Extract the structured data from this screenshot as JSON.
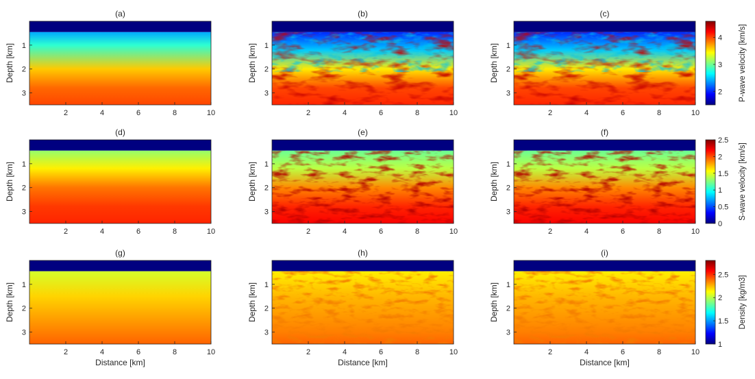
{
  "figure": {
    "xlabel": "Distance [km]",
    "ylabel": "Depth [km]"
  },
  "chart_data": {
    "type": "heatmap",
    "colormap": "jet",
    "x_range": [
      0,
      10
    ],
    "y_range": [
      0,
      3.5
    ],
    "x_ticks": [
      "2",
      "4",
      "6",
      "8",
      "10"
    ],
    "y_ticks": [
      "1",
      "2",
      "3"
    ],
    "x_tick_values": [
      2,
      4,
      6,
      8,
      10
    ],
    "y_tick_values": [
      1,
      2,
      3
    ],
    "water_layer_bottom_km": 0.45,
    "rows": [
      {
        "property": "P-wave velocity",
        "colorbar": {
          "label": "P-wave velocity [km/s]",
          "clim": [
            1.5,
            4.6
          ],
          "ticks": [
            "2",
            "3",
            "4"
          ],
          "tick_values": [
            2,
            3,
            4
          ]
        },
        "panels": [
          {
            "label": "(a)",
            "kind": "initial",
            "water_value": 1.5,
            "gradient_depths_km": [
              0.45,
              1.0,
              2.0,
              2.8,
              3.5
            ],
            "gradient_values": [
              2.4,
              2.8,
              3.6,
              3.9,
              4.0
            ]
          },
          {
            "label": "(b)",
            "kind": "inverted",
            "water_value": 1.5,
            "gradient_depths_km": [
              0.45,
              1.2,
              2.0,
              2.8,
              3.5
            ],
            "gradient_values": [
              2.0,
              2.5,
              3.5,
              4.0,
              4.1
            ]
          },
          {
            "label": "(c)",
            "kind": "inverted",
            "water_value": 1.5,
            "gradient_depths_km": [
              0.45,
              1.2,
              2.0,
              2.8,
              3.5
            ],
            "gradient_values": [
              2.0,
              2.5,
              3.5,
              4.0,
              4.1
            ]
          }
        ]
      },
      {
        "property": "S-wave velocity",
        "colorbar": {
          "label": "S-wave velocity [km/s]",
          "clim": [
            0,
            2.5
          ],
          "ticks": [
            "0",
            "0.5",
            "1",
            "1.5",
            "2",
            "2.5"
          ],
          "tick_values": [
            0,
            0.5,
            1,
            1.5,
            2,
            2.5
          ]
        },
        "panels": [
          {
            "label": "(d)",
            "kind": "initial",
            "water_value": 0,
            "gradient_depths_km": [
              0.45,
              1.2,
              2.0,
              2.8,
              3.5
            ],
            "gradient_values": [
              1.3,
              1.6,
              1.9,
              2.05,
              2.1
            ]
          },
          {
            "label": "(e)",
            "kind": "inverted",
            "water_value": 0,
            "gradient_depths_km": [
              0.45,
              1.2,
              2.0,
              2.8,
              3.5
            ],
            "gradient_values": [
              1.2,
              1.4,
              1.85,
              2.1,
              2.2
            ]
          },
          {
            "label": "(f)",
            "kind": "inverted",
            "water_value": 0,
            "gradient_depths_km": [
              0.45,
              1.2,
              2.0,
              2.8,
              3.5
            ],
            "gradient_values": [
              1.2,
              1.4,
              1.85,
              2.1,
              2.2
            ]
          }
        ]
      },
      {
        "property": "Density",
        "colorbar": {
          "label": "Density [kg/m3]",
          "clim": [
            1.0,
            2.8
          ],
          "ticks": [
            "1",
            "1.5",
            "2",
            "2.5"
          ],
          "tick_values": [
            1,
            1.5,
            2,
            2.5
          ]
        },
        "panels": [
          {
            "label": "(g)",
            "kind": "initial",
            "water_value": 1.0,
            "gradient_depths_km": [
              0.45,
              1.5,
              3.0,
              3.5
            ],
            "gradient_values": [
              2.05,
              2.2,
              2.35,
              2.4
            ]
          },
          {
            "label": "(h)",
            "kind": "inverted",
            "water_value": 1.0,
            "gradient_depths_km": [
              0.45,
              1.5,
              3.0,
              3.5
            ],
            "gradient_values": [
              2.15,
              2.25,
              2.35,
              2.4
            ]
          },
          {
            "label": "(i)",
            "kind": "inverted",
            "water_value": 1.0,
            "gradient_depths_km": [
              0.45,
              1.5,
              3.0,
              3.5
            ],
            "gradient_values": [
              2.15,
              2.25,
              2.35,
              2.4
            ]
          }
        ]
      }
    ]
  }
}
